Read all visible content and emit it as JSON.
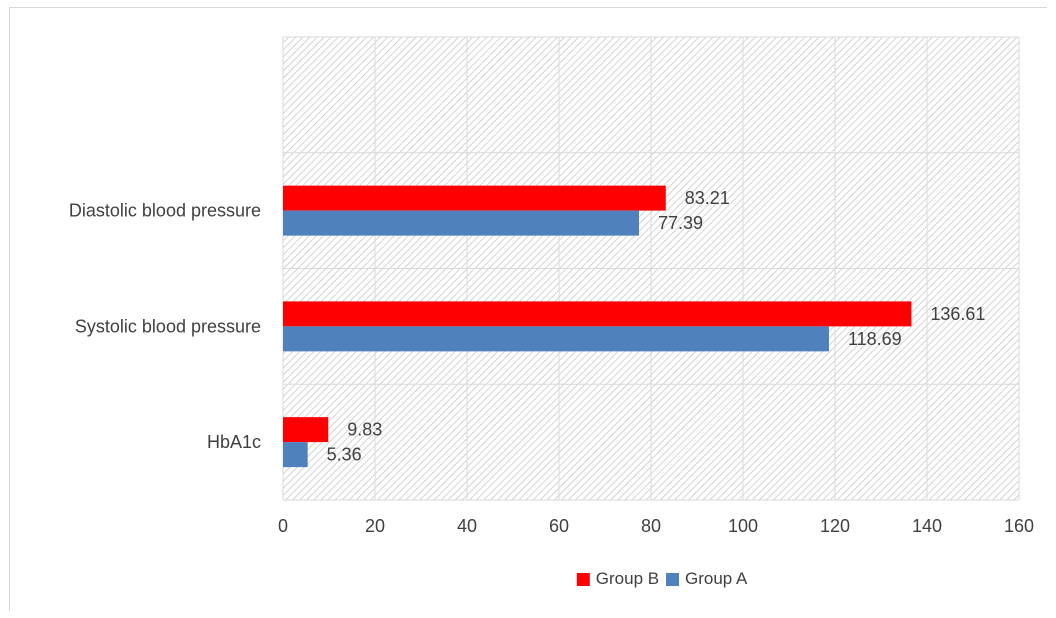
{
  "chart_data": {
    "type": "bar",
    "orientation": "horizontal",
    "categories": [
      "HbA1c",
      "Systolic blood pressure",
      "Diastolic blood pressure",
      ""
    ],
    "series": [
      {
        "name": "Group B",
        "color": "#ff0000",
        "values": [
          9.83,
          136.61,
          83.21,
          null
        ],
        "labels": [
          "9.83",
          "136.61",
          "83.21",
          ""
        ]
      },
      {
        "name": "Group A",
        "color": "#4f81bd",
        "values": [
          5.36,
          118.69,
          77.39,
          null
        ],
        "labels": [
          "5.36",
          "118.69",
          "77.39",
          ""
        ]
      }
    ],
    "xlim": [
      0,
      160
    ],
    "xticks": [
      0,
      20,
      40,
      60,
      80,
      100,
      120,
      140,
      160
    ],
    "xtick_labels": [
      "0",
      "20",
      "40",
      "60",
      "80",
      "100",
      "120",
      "140",
      "160"
    ],
    "grid": true,
    "plot_background": "hatched-gray",
    "legend": {
      "placement": "bottom",
      "entries": [
        "Group B",
        "Group A"
      ]
    },
    "title": "",
    "xlabel": "",
    "ylabel": ""
  }
}
